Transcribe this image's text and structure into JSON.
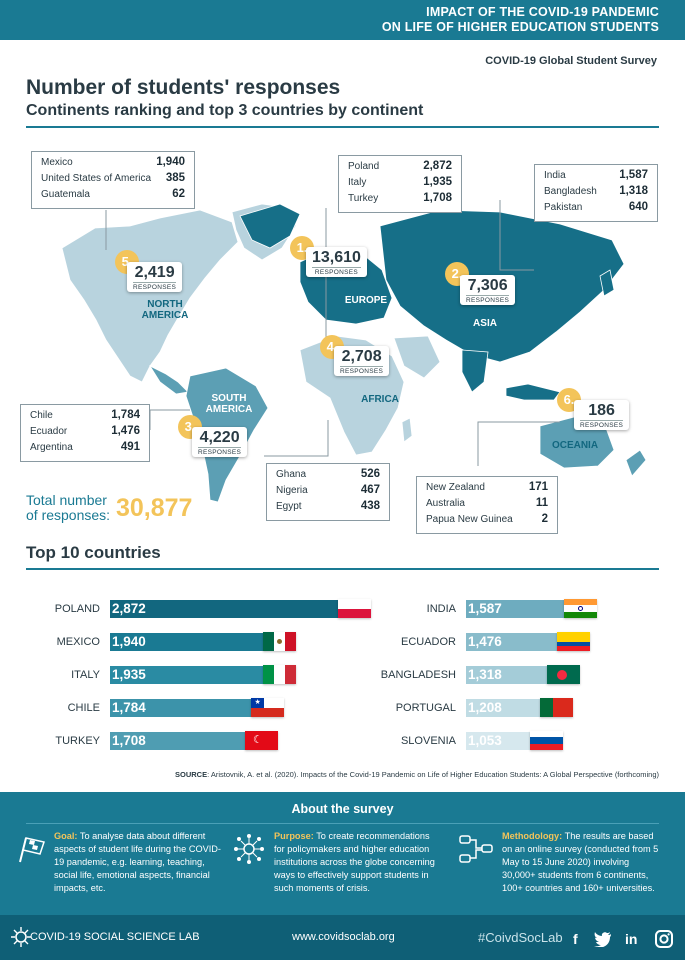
{
  "header": {
    "line1": "IMPACT OF THE COVID-19 PANDEMIC",
    "line2": "ON LIFE OF HIGHER EDUCATION STUDENTS"
  },
  "survey_label": "COVID-19 Global Student Survey",
  "title": "Number of students' responses",
  "subtitle": "Continents ranking and top 3 countries by continent",
  "responses_label": "RESPONSES",
  "chart_data": [
    {
      "type": "table",
      "title": "Continents ranking",
      "continents": [
        {
          "rank": "1.",
          "name": "EUROPE",
          "responses": "13,610",
          "top3": [
            [
              "Poland",
              "2,872"
            ],
            [
              "Italy",
              "1,935"
            ],
            [
              "Turkey",
              "1,708"
            ]
          ]
        },
        {
          "rank": "2.",
          "name": "ASIA",
          "responses": "7,306",
          "top3": [
            [
              "India",
              "1,587"
            ],
            [
              "Bangladesh",
              "1,318"
            ],
            [
              "Pakistan",
              "640"
            ]
          ]
        },
        {
          "rank": "3.",
          "name": "SOUTH AMERICA",
          "responses": "4,220",
          "top3": [
            [
              "Chile",
              "1,784"
            ],
            [
              "Ecuador",
              "1,476"
            ],
            [
              "Argentina",
              "491"
            ]
          ]
        },
        {
          "rank": "4.",
          "name": "AFRICA",
          "responses": "2,708",
          "top3": [
            [
              "Ghana",
              "526"
            ],
            [
              "Nigeria",
              "467"
            ],
            [
              "Egypt",
              "438"
            ]
          ]
        },
        {
          "rank": "5.",
          "name": "NORTH AMERICA",
          "responses": "2,419",
          "top3": [
            [
              "Mexico",
              "1,940"
            ],
            [
              "United States of America",
              "385"
            ],
            [
              "Guatemala",
              "62"
            ]
          ]
        },
        {
          "rank": "6.",
          "name": "OCEANIA",
          "responses": "186",
          "top3": [
            [
              "New Zealand",
              "171"
            ],
            [
              "Australia",
              "11"
            ],
            [
              "Papua New Guinea",
              "2"
            ]
          ]
        }
      ]
    },
    {
      "type": "bar",
      "title": "Top 10 countries",
      "categories": [
        "POLAND",
        "MEXICO",
        "ITALY",
        "CHILE",
        "TURKEY",
        "INDIA",
        "ECUADOR",
        "BANGLADESH",
        "PORTUGAL",
        "SLOVENIA"
      ],
      "values": [
        2872,
        1940,
        1935,
        1784,
        1708,
        1587,
        1476,
        1318,
        1208,
        1053
      ],
      "labels": [
        "2,872",
        "1,940",
        "1,935",
        "1,784",
        "1,708",
        "1,587",
        "1,476",
        "1,318",
        "1,208",
        "1,053"
      ],
      "colors": [
        "#12677f",
        "#1a7a93",
        "#2a8ba3",
        "#3c93aa",
        "#4f9db2",
        "#6eacbf",
        "#89bccb",
        "#a4ccd8",
        "#c0dce4",
        "#d6e8ee"
      ],
      "xlim": [
        0,
        2872
      ]
    }
  ],
  "total": {
    "label1": "Total number",
    "label2": "of responses:",
    "value": "30,877"
  },
  "top10_title": "Top 10 countries",
  "source": {
    "label": "SOURCE",
    "text": ": Aristovnik, A. et al. (2020). Impacts of the Covid-19 Pandemic on Life of Higher Education Students: A Global Perspective (forthcoming)"
  },
  "about": {
    "title": "About the survey",
    "goal_h": "Goal:",
    "goal_t": " To analyse data about different aspects of student life during the COVID-19 pandemic, e.g. learning, teaching, social life, emotional aspects, financial impacts, etc.",
    "purpose_h": "Purpose:",
    "purpose_t": " To create recommendations for policymakers and higher education institutions across the globe concerning ways to effectively support students in such moments of crisis.",
    "method_h": "Methodology:",
    "method_t": " The results are based on an online survey (conducted from 5 May to 15 June 2020) involving 30,000+ students from 6 continents, 100+ countries and 160+ universities."
  },
  "footer": {
    "lab": "COVID-19 SOCIAL SCIENCE LAB",
    "web": "www.covidsoclab.org",
    "tag": "#CoivdSocLab",
    "fb": "f",
    "in": "in"
  },
  "colors": {
    "teal": "#1a7a93",
    "dark_teal": "#0f5f76",
    "yellow": "#f3c45a",
    "map_light": "#b8d3de",
    "map_mid": "#5c9fb4",
    "map_dark": "#166f88"
  }
}
